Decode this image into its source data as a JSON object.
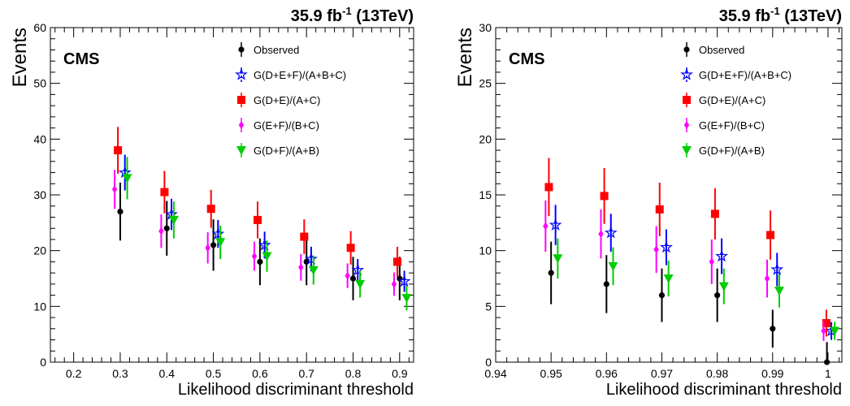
{
  "colors": {
    "observed": "#000000",
    "total": "#0000ff",
    "de_ac": "#ff0000",
    "ef_bc": "#ff00ff",
    "df_ab": "#00cc00"
  },
  "chart_data": [
    {
      "type": "scatter",
      "lumi": "35.9 fb",
      "lumi_sup": "-1",
      "energy": " (13TeV)",
      "cms_label": "CMS",
      "xlabel": "Likelihood discriminant threshold",
      "ylabel": "Events",
      "xlim": [
        0.15,
        0.93
      ],
      "ylim": [
        0,
        60
      ],
      "xticks": [
        0.2,
        0.3,
        0.4,
        0.5,
        0.6,
        0.7,
        0.8,
        0.9
      ],
      "xtick_labels": [
        "0.2",
        "0.3",
        "0.4",
        "0.5",
        "0.6",
        "0.7",
        "0.8",
        "0.9"
      ],
      "yticks": [
        0,
        10,
        20,
        30,
        40,
        50,
        60
      ],
      "ytick_labels": [
        "0",
        "10",
        "20",
        "30",
        "40",
        "50",
        "60"
      ],
      "grid": false,
      "legend_position": "top-right",
      "x": [
        0.3,
        0.4,
        0.5,
        0.6,
        0.7,
        0.8,
        0.9
      ],
      "series": [
        {
          "name": "Observed",
          "key": "observed",
          "marker": "circle",
          "x": [
            0.3,
            0.4,
            0.5,
            0.6,
            0.7,
            0.8,
            0.9
          ],
          "values": [
            27,
            24,
            21,
            18,
            18,
            15,
            15
          ],
          "err_low": [
            5.2,
            4.9,
            4.6,
            4.2,
            4.2,
            3.9,
            3.9
          ],
          "err_high": [
            5.2,
            4.9,
            4.6,
            4.2,
            4.2,
            3.9,
            3.9
          ]
        },
        {
          "name": "G(D+E+F)/(A+B+C)",
          "key": "total",
          "marker": "star",
          "x": [
            0.31,
            0.41,
            0.51,
            0.61,
            0.71,
            0.81,
            0.91
          ],
          "values": [
            34,
            26.5,
            23,
            21,
            18.5,
            16.5,
            14.5
          ],
          "err_low": [
            3.2,
            2.8,
            2.5,
            2.4,
            2.2,
            2.0,
            1.9
          ],
          "err_high": [
            3.2,
            2.8,
            2.5,
            2.4,
            2.2,
            2.0,
            1.9
          ]
        },
        {
          "name": "G(D+E)/(A+C)",
          "key": "de_ac",
          "marker": "square",
          "x": [
            0.295,
            0.395,
            0.495,
            0.595,
            0.695,
            0.795,
            0.895
          ],
          "values": [
            38,
            30.5,
            27.5,
            25.5,
            22.5,
            20.5,
            18
          ],
          "err_low": [
            4.2,
            3.8,
            3.4,
            3.3,
            3.1,
            3.0,
            2.7
          ],
          "err_high": [
            4.2,
            3.8,
            3.4,
            3.3,
            3.1,
            3.0,
            2.7
          ]
        },
        {
          "name": "G(E+F)/(B+C)",
          "key": "ef_bc",
          "marker": "diamond",
          "x": [
            0.288,
            0.388,
            0.488,
            0.588,
            0.688,
            0.788,
            0.888
          ],
          "values": [
            31,
            23.5,
            20.5,
            19,
            17,
            15.5,
            14
          ],
          "err_low": [
            3.5,
            3.0,
            2.8,
            2.6,
            2.4,
            2.2,
            2.1
          ],
          "err_high": [
            3.5,
            3.0,
            2.8,
            2.6,
            2.4,
            2.2,
            2.1
          ]
        },
        {
          "name": "G(D+F)/(A+B)",
          "key": "df_ab",
          "marker": "triangle-down",
          "x": [
            0.315,
            0.415,
            0.515,
            0.615,
            0.715,
            0.815,
            0.915
          ],
          "values": [
            33,
            25.5,
            21.5,
            19,
            16.5,
            14,
            11.5
          ],
          "err_low": [
            3.8,
            3.3,
            3.0,
            2.8,
            2.6,
            2.4,
            2.2
          ],
          "err_high": [
            3.8,
            3.3,
            3.0,
            2.8,
            2.6,
            2.4,
            2.2
          ]
        }
      ]
    },
    {
      "type": "scatter",
      "lumi": "35.9 fb",
      "lumi_sup": "-1",
      "energy": " (13TeV)",
      "cms_label": "CMS",
      "xlabel": "Likelihood discriminant threshold",
      "ylabel": "Events",
      "xlim": [
        0.94,
        1.0025
      ],
      "ylim": [
        0,
        30
      ],
      "xticks": [
        0.94,
        0.95,
        0.96,
        0.97,
        0.98,
        0.99,
        1.0
      ],
      "xtick_labels": [
        "0.94",
        "0.95",
        "0.96",
        "0.97",
        "0.98",
        "0.99",
        "1"
      ],
      "yticks": [
        0,
        5,
        10,
        15,
        20,
        25,
        30
      ],
      "ytick_labels": [
        "0",
        "5",
        "10",
        "15",
        "20",
        "25",
        "30"
      ],
      "grid": false,
      "legend_position": "top-right",
      "x": [
        0.95,
        0.96,
        0.97,
        0.98,
        0.99,
        1.0
      ],
      "series": [
        {
          "name": "Observed",
          "key": "observed",
          "marker": "circle",
          "x": [
            0.95,
            0.96,
            0.97,
            0.98,
            0.99,
            0.9998
          ],
          "values": [
            8,
            7,
            6,
            6,
            3,
            0
          ],
          "err_low": [
            2.8,
            2.6,
            2.4,
            2.4,
            1.7,
            0
          ],
          "err_high": [
            2.8,
            2.6,
            2.4,
            2.4,
            1.7,
            1.8
          ]
        },
        {
          "name": "G(D+E+F)/(A+B+C)",
          "key": "total",
          "marker": "star",
          "x": [
            0.9508,
            0.9608,
            0.9708,
            0.9808,
            0.9908,
            1.0006
          ],
          "values": [
            12.3,
            11.6,
            10.3,
            9.5,
            8.3,
            2.8
          ],
          "err_low": [
            1.8,
            1.7,
            1.6,
            1.6,
            1.5,
            0.8
          ],
          "err_high": [
            1.8,
            1.7,
            1.6,
            1.6,
            1.5,
            0.8
          ]
        },
        {
          "name": "G(D+E)/(A+C)",
          "key": "de_ac",
          "marker": "square",
          "x": [
            0.9496,
            0.9596,
            0.9696,
            0.9796,
            0.9896,
            0.9997
          ],
          "values": [
            15.7,
            14.9,
            13.7,
            13.3,
            11.4,
            3.5
          ],
          "err_low": [
            2.6,
            2.5,
            2.4,
            2.3,
            2.2,
            1.2
          ],
          "err_high": [
            2.6,
            2.5,
            2.4,
            2.3,
            2.2,
            1.2
          ]
        },
        {
          "name": "G(E+F)/(B+C)",
          "key": "ef_bc",
          "marker": "diamond",
          "x": [
            0.949,
            0.959,
            0.969,
            0.979,
            0.989,
            0.9992
          ],
          "values": [
            12.2,
            11.5,
            10.1,
            9.0,
            7.5,
            2.8
          ],
          "err_low": [
            2.3,
            2.2,
            2.1,
            2.0,
            1.7,
            0.9
          ],
          "err_high": [
            2.3,
            2.2,
            2.1,
            2.0,
            1.7,
            0.9
          ]
        },
        {
          "name": "G(D+F)/(A+B)",
          "key": "df_ab",
          "marker": "triangle-down",
          "x": [
            0.9512,
            0.9612,
            0.9712,
            0.9812,
            0.9912,
            1.0012
          ],
          "values": [
            9.3,
            8.6,
            7.5,
            6.8,
            6.4,
            2.8
          ],
          "err_low": [
            1.8,
            1.7,
            1.6,
            1.6,
            1.5,
            0.8
          ],
          "err_high": [
            1.8,
            1.7,
            1.6,
            1.6,
            1.5,
            0.8
          ]
        }
      ]
    }
  ]
}
